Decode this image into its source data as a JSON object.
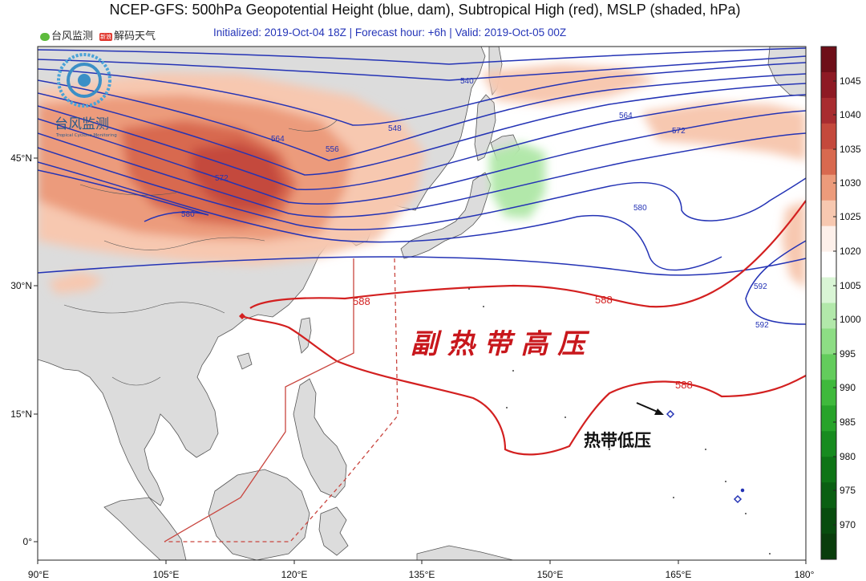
{
  "header": {
    "title": "NCEP-GFS: 500hPa Geopotential Height (blue, dam), Subtropical High (red), MSLP (shaded, hPa)",
    "subtitle": "Initialized: 2019-Oct-04 18Z  |  Forecast hour: +6h  |  Valid: 2019-Oct-05 00Z",
    "credit_1": "台风监测",
    "credit_2": "解码天气",
    "weibo_badge": "新浪"
  },
  "logo": {
    "name": "台风监测",
    "tagline": "Tropical Cyclone Monitoring"
  },
  "map": {
    "x_ticks": [
      "90°E",
      "105°E",
      "120°E",
      "135°E",
      "150°E",
      "165°E",
      "180°"
    ],
    "y_ticks": [
      "45°N",
      "30°N",
      "15°N",
      "0°"
    ],
    "contour_labels_blue": [
      "540",
      "548",
      "556",
      "564",
      "564",
      "572",
      "572",
      "580",
      "580",
      "592",
      "592"
    ],
    "contour_labels_red": [
      "588",
      "588",
      "588"
    ],
    "annotation_subtropical_high": "副 热 带 高 压",
    "annotation_tropical_depression": "热带低压",
    "colors": {
      "height_contour": "#2433b5",
      "subtropical_high": "#d32020",
      "land": "#dcdcdc",
      "coast": "#444444"
    }
  },
  "colorbar": {
    "levels": [
      "1045",
      "1040",
      "1035",
      "1030",
      "1025",
      "1020",
      "1005",
      "1000",
      "995",
      "990",
      "985",
      "980",
      "975",
      "970"
    ],
    "colors_top_to_bottom": [
      "#6e0f18",
      "#8e1a24",
      "#a82c30",
      "#c4493c",
      "#d8694f",
      "#ec9b7b",
      "#f7c8b0",
      "#fdf0ea",
      "#ffffff",
      "#d9f5d5",
      "#b2e8aa",
      "#8ddd84",
      "#63cc5c",
      "#3fb93c",
      "#27a32a",
      "#178b1f",
      "#0e7416",
      "#0a5f12",
      "#084c0e",
      "#0a3d0c"
    ]
  }
}
